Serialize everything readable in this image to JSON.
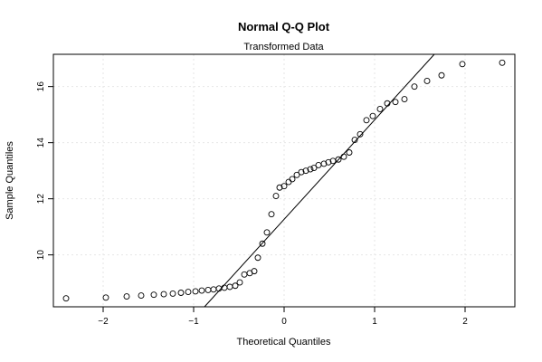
{
  "chart_data": {
    "type": "scatter",
    "title": "Normal Q-Q Plot",
    "subtitle": "Transformed Data",
    "xlabel": "Theoretical Quantiles",
    "ylabel": "Sample Quantiles",
    "xlim": [
      -2.55,
      2.55
    ],
    "ylim": [
      8.15,
      17.15
    ],
    "xticks": [
      -2,
      -1,
      0,
      1,
      2
    ],
    "yticks": [
      10,
      12,
      14,
      16
    ],
    "xtick_labels": [
      "−2",
      "−1",
      "0",
      "1",
      "2"
    ],
    "ytick_labels": [
      "10",
      "12",
      "14",
      "16"
    ],
    "grid": true,
    "reference_line": {
      "x": [
        -0.88,
        1.66
      ],
      "y": [
        8.15,
        17.15
      ]
    },
    "x": [
      -2.41,
      -1.97,
      -1.74,
      -1.58,
      -1.44,
      -1.33,
      -1.23,
      -1.14,
      -1.06,
      -0.98,
      -0.91,
      -0.84,
      -0.78,
      -0.72,
      -0.66,
      -0.6,
      -0.54,
      -0.49,
      -0.44,
      -0.38,
      -0.33,
      -0.29,
      -0.24,
      -0.19,
      -0.14,
      -0.09,
      -0.05,
      0.0,
      0.05,
      0.09,
      0.14,
      0.19,
      0.24,
      0.29,
      0.33,
      0.38,
      0.44,
      0.49,
      0.54,
      0.6,
      0.66,
      0.72,
      0.78,
      0.84,
      0.91,
      0.98,
      1.06,
      1.14,
      1.23,
      1.33,
      1.44,
      1.58,
      1.74,
      1.97,
      2.41
    ],
    "y": [
      8.45,
      8.48,
      8.52,
      8.55,
      8.58,
      8.6,
      8.62,
      8.65,
      8.68,
      8.7,
      8.73,
      8.75,
      8.77,
      8.8,
      8.83,
      8.86,
      8.9,
      9.02,
      9.3,
      9.35,
      9.42,
      9.9,
      10.4,
      10.8,
      11.45,
      12.1,
      12.4,
      12.45,
      12.6,
      12.7,
      12.85,
      12.95,
      13.0,
      13.05,
      13.1,
      13.2,
      13.25,
      13.3,
      13.35,
      13.4,
      13.5,
      13.65,
      14.1,
      14.3,
      14.8,
      14.95,
      15.2,
      15.4,
      15.45,
      15.55,
      16.0,
      16.2,
      16.4,
      16.8,
      16.85
    ]
  }
}
